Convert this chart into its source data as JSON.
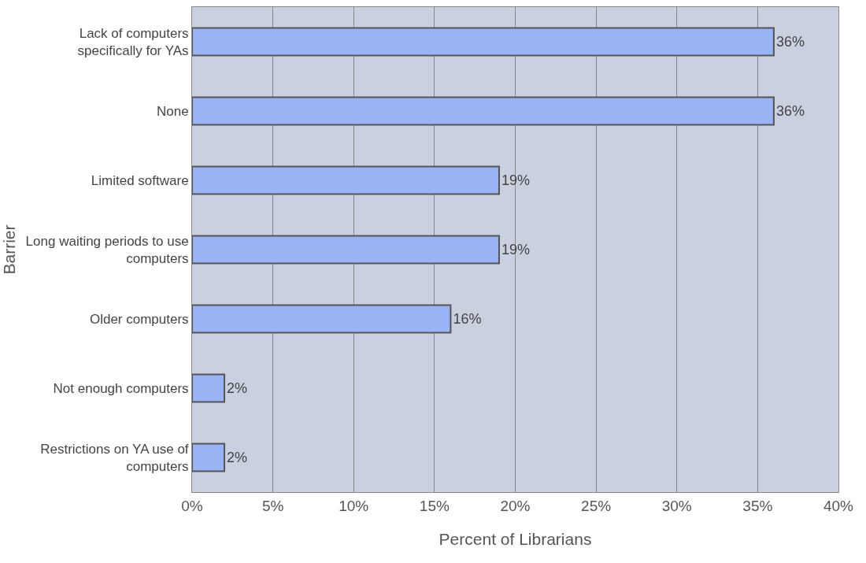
{
  "chart_data": {
    "type": "bar",
    "orientation": "horizontal",
    "xlabel": "Percent of Librarians",
    "ylabel": "Barrier",
    "categories": [
      "Lack of computers specifically for YAs",
      "None",
      "Limited software",
      "Long waiting periods to use computers",
      "Older computers",
      "Not enough computers",
      "Restrictions on YA use of computers"
    ],
    "values": [
      36,
      36,
      19,
      19,
      16,
      2,
      2
    ],
    "value_labels": [
      "36%",
      "36%",
      "19%",
      "19%",
      "16%",
      "2%",
      "2%"
    ],
    "color": "#99b3f5",
    "xlim": [
      0,
      40
    ],
    "xticks": [
      {
        "value": 0,
        "label": "0%"
      },
      {
        "value": 5,
        "label": "5%"
      },
      {
        "value": 10,
        "label": "10%"
      },
      {
        "value": 15,
        "label": "15%"
      },
      {
        "value": 20,
        "label": "20%"
      },
      {
        "value": 25,
        "label": "25%"
      },
      {
        "value": 30,
        "label": "30%"
      },
      {
        "value": 35,
        "label": "35%"
      },
      {
        "value": 40,
        "label": "40%"
      }
    ],
    "grid": "x"
  }
}
